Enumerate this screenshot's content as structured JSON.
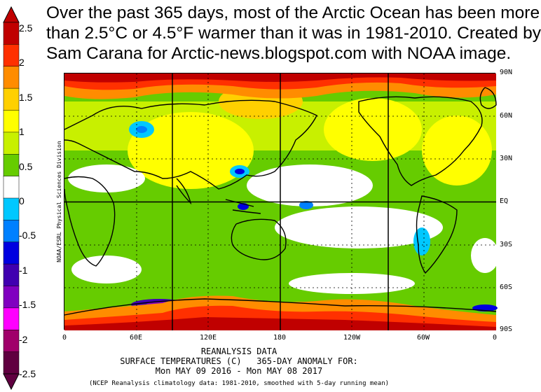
{
  "title_lines": [
    "Over the past 365 days, most of the Arctic Ocean has been more",
    "than 2.5°C or 4.5°F warmer than it was in 1981-2010. Created by",
    "Sam Carana for Arctic-news.blogspot.com with NOAA image."
  ],
  "colorbar": {
    "labels": [
      "2.5",
      "2",
      "1.5",
      "1",
      "0.5",
      "0",
      "-0.5",
      "-1",
      "-1.5",
      "-2",
      "-2.5"
    ],
    "colors": [
      "#c00000",
      "#ff3000",
      "#ff8c00",
      "#ffd000",
      "#ffff00",
      "#c8f000",
      "#66cc00",
      "#ffffff",
      "#00c8ff",
      "#0080ff",
      "#0000e0",
      "#4000b0",
      "#8000c0",
      "#ff00ff",
      "#a0006a",
      "#600040"
    ]
  },
  "map": {
    "lat_labels": [
      "90N",
      "60N",
      "30N",
      "EQ",
      "30S",
      "60S",
      "90S"
    ],
    "lon_labels": [
      "0",
      "60E",
      "120E",
      "180",
      "120W",
      "60W",
      "0"
    ],
    "side_credit": "NOAA/ESRL Physical Sciences Division"
  },
  "footer": {
    "line1": "REANALYSIS DATA",
    "line2": "SURFACE TEMPERATURES (C)   365-DAY ANOMALY FOR:",
    "line3": "Mon MAY 09 2016 - Mon MAY 08 2017",
    "line4": "(NCEP Reanalysis climatology data: 1981-2010, smoothed with 5-day running mean)"
  }
}
